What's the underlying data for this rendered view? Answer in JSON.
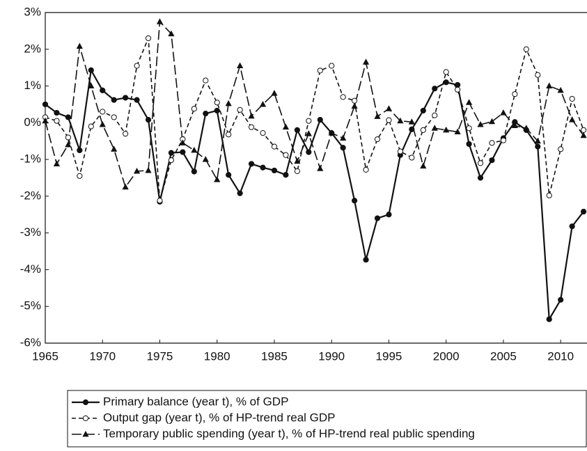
{
  "chart_data": {
    "type": "line",
    "x": [
      1965,
      1966,
      1967,
      1968,
      1969,
      1970,
      1971,
      1972,
      1973,
      1974,
      1975,
      1976,
      1977,
      1978,
      1979,
      1980,
      1981,
      1982,
      1983,
      1984,
      1985,
      1986,
      1987,
      1988,
      1989,
      1990,
      1991,
      1992,
      1993,
      1994,
      1995,
      1996,
      1997,
      1998,
      1999,
      2000,
      2001,
      2002,
      2003,
      2004,
      2005,
      2006,
      2007,
      2008,
      2009,
      2010,
      2011,
      2012
    ],
    "series": [
      {
        "name": "Primary balance (year t), % of GDP",
        "color": "#111111",
        "dash": "solid",
        "marker": "circle",
        "values": [
          0.5,
          0.27,
          0.15,
          -0.75,
          1.43,
          0.88,
          0.62,
          0.68,
          0.62,
          0.08,
          -2.15,
          -0.82,
          -0.8,
          -1.33,
          0.25,
          0.33,
          -1.42,
          -1.92,
          -1.12,
          -1.22,
          -1.3,
          -1.42,
          -0.2,
          -0.8,
          0.08,
          -0.28,
          -0.68,
          -2.12,
          -3.73,
          -2.6,
          -2.5,
          -0.88,
          -0.18,
          0.33,
          0.93,
          1.1,
          1.03,
          -0.58,
          -1.5,
          -1.02,
          -0.42,
          0.02,
          -0.2,
          -0.65,
          -5.35,
          -4.82,
          -2.82,
          -2.42
        ]
      },
      {
        "name": "Output gap (year t), % of HP-trend real GDP",
        "color": "#111111",
        "dash": "dashed",
        "marker": "circle-open",
        "values": [
          0.15,
          0.05,
          -0.4,
          -1.45,
          -0.1,
          0.3,
          0.15,
          -0.3,
          1.55,
          2.3,
          -2.12,
          -1.02,
          -0.45,
          0.38,
          1.15,
          0.55,
          -0.32,
          0.35,
          -0.12,
          -0.28,
          -0.65,
          -0.88,
          -1.32,
          0.05,
          1.42,
          1.55,
          0.7,
          0.6,
          -1.28,
          -0.45,
          0.07,
          -0.78,
          -0.95,
          -0.2,
          0.2,
          1.38,
          0.9,
          -0.15,
          -1.1,
          -0.55,
          -0.48,
          0.78,
          2.0,
          1.3,
          -1.98,
          -0.72,
          0.65,
          -0.2
        ]
      },
      {
        "name": "Temporary public spending (year t), % of HP-trend real public spending",
        "color": "#111111",
        "dash": "longdash",
        "marker": "triangle",
        "values": [
          0.05,
          -1.12,
          -0.6,
          2.08,
          1.0,
          -0.05,
          -0.72,
          -1.75,
          -1.32,
          -1.3,
          2.75,
          2.42,
          -0.55,
          -0.75,
          -1.0,
          -1.55,
          0.52,
          1.55,
          0.18,
          0.5,
          0.8,
          -0.12,
          -1.05,
          -0.3,
          -1.25,
          -0.28,
          -0.42,
          0.45,
          1.65,
          0.17,
          0.38,
          0.05,
          0.02,
          -1.18,
          -0.15,
          -0.2,
          -0.25,
          0.55,
          -0.05,
          0.03,
          0.27,
          -0.08,
          -0.15,
          -0.5,
          1.0,
          0.88,
          0.08,
          -0.35
        ]
      }
    ],
    "xlim": [
      1965,
      2012.3
    ],
    "xticks": [
      1965,
      1970,
      1975,
      1980,
      1985,
      1990,
      1995,
      2000,
      2005,
      2010
    ],
    "ylim": [
      -6,
      3
    ],
    "yticks": [
      {
        "value": -6,
        "label": "-6%"
      },
      {
        "value": -5,
        "label": "-5%"
      },
      {
        "value": -4,
        "label": "-4%"
      },
      {
        "value": -3,
        "label": "-3%"
      },
      {
        "value": -2,
        "label": "-2%"
      },
      {
        "value": -1,
        "label": "-1%"
      },
      {
        "value": 0,
        "label": "0%"
      },
      {
        "value": 1,
        "label": "1%"
      },
      {
        "value": 2,
        "label": "2%"
      },
      {
        "value": 3,
        "label": "3%"
      }
    ],
    "grid": false,
    "legend": "bottom"
  }
}
